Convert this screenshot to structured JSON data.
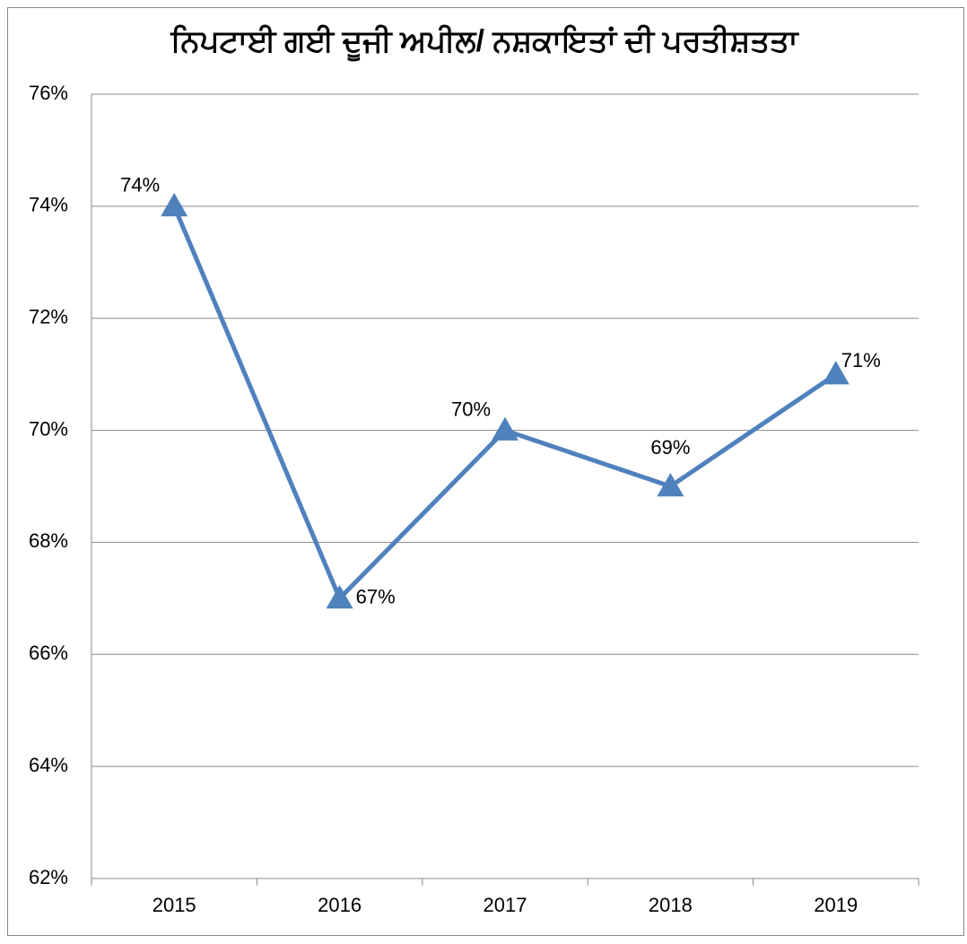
{
  "chart_data": {
    "type": "line",
    "title": "ਨਿਪਟਾਈ ਗਈ ਦੂਜੀ ਅਪੀਲ/ ਨਸ਼ਕਾਇਤਾਂ ਦੀ ਪਰਤੀਸ਼ਤਤਾ",
    "categories": [
      "2015",
      "2016",
      "2017",
      "2018",
      "2019"
    ],
    "series": [
      {
        "color": "#4f81bd",
        "values": [
          74,
          67,
          70,
          69,
          71
        ],
        "value_labels": [
          "74%",
          "67%",
          "70%",
          "69%",
          "71%"
        ]
      }
    ],
    "ylim": [
      62,
      76
    ],
    "yticks": [
      {
        "value": 62,
        "label": "62%"
      },
      {
        "value": 64,
        "label": "64%"
      },
      {
        "value": 66,
        "label": "66%"
      },
      {
        "value": 68,
        "label": "68%"
      },
      {
        "value": 70,
        "label": "70%"
      },
      {
        "value": 72,
        "label": "72%"
      },
      {
        "value": 74,
        "label": "74%"
      },
      {
        "value": 76,
        "label": "76%"
      }
    ],
    "grid": true
  }
}
